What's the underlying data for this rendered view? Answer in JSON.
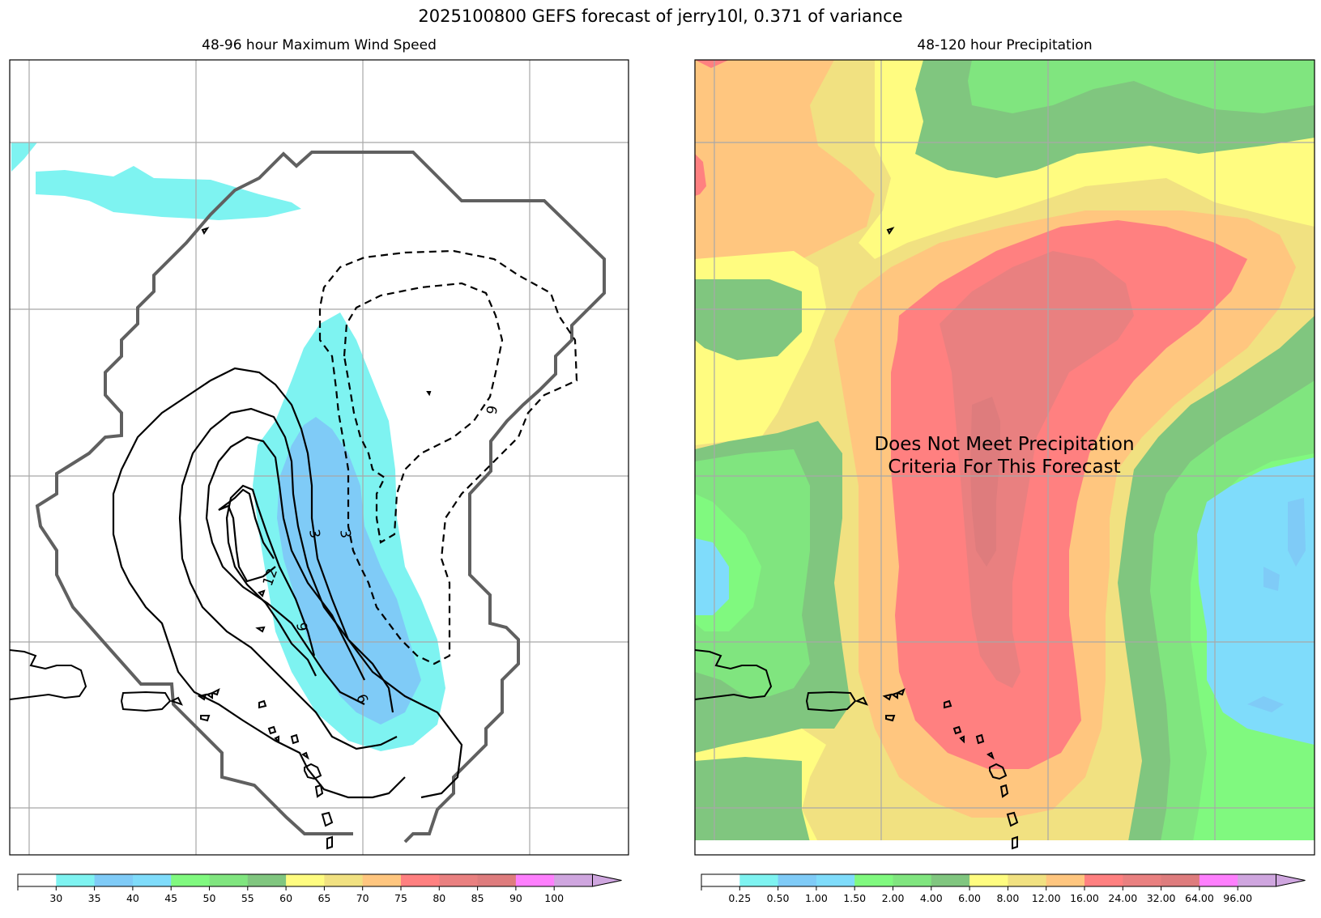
{
  "suptitle": "2025100800 GEFS forecast of jerry10l, 0.371 of variance",
  "left_panel": {
    "title": "48-96 hour Maximum Wind Speed",
    "contour_labels": [
      "3",
      "3",
      "12",
      "9",
      "6",
      "6"
    ]
  },
  "right_panel": {
    "title": "48-120 hour Precipitation",
    "message_line1": "Does Not Meet Precipitation",
    "message_line2": "Criteria For This Forecast"
  },
  "chart_data": [
    {
      "type": "heatmap",
      "title": "48-96 hour Maximum Wind Speed",
      "colorbar": {
        "levels": [
          "30",
          "35",
          "40",
          "45",
          "50",
          "55",
          "60",
          "65",
          "70",
          "75",
          "80",
          "85",
          "90",
          "100"
        ],
        "colors": [
          "#ffffff",
          "#7ef3f1",
          "#7fcbf7",
          "#7fdcfb",
          "#80f97f",
          "#80e57f",
          "#80c67f",
          "#fffc80",
          "#f1e181",
          "#ffc67f",
          "#ff8080",
          "#e98080",
          "#de7c7d",
          "#fe7ffd",
          "#cfa6df"
        ],
        "extend": "max"
      }
    },
    {
      "type": "heatmap",
      "title": "48-120 hour Precipitation",
      "colorbar": {
        "levels": [
          "0.25",
          "0.50",
          "1.00",
          "1.50",
          "2.00",
          "4.00",
          "6.00",
          "8.00",
          "12.00",
          "16.00",
          "24.00",
          "32.00",
          "64.00",
          "96.00"
        ],
        "colors": [
          "#ffffff",
          "#7ef3f1",
          "#7fcbf7",
          "#7fdcfb",
          "#80f97f",
          "#80e57f",
          "#80c67f",
          "#fffc80",
          "#f1e181",
          "#ffc67f",
          "#ff8080",
          "#e98080",
          "#de7c7d",
          "#fe7ffd",
          "#cfa6df"
        ],
        "extend": "max"
      }
    }
  ]
}
